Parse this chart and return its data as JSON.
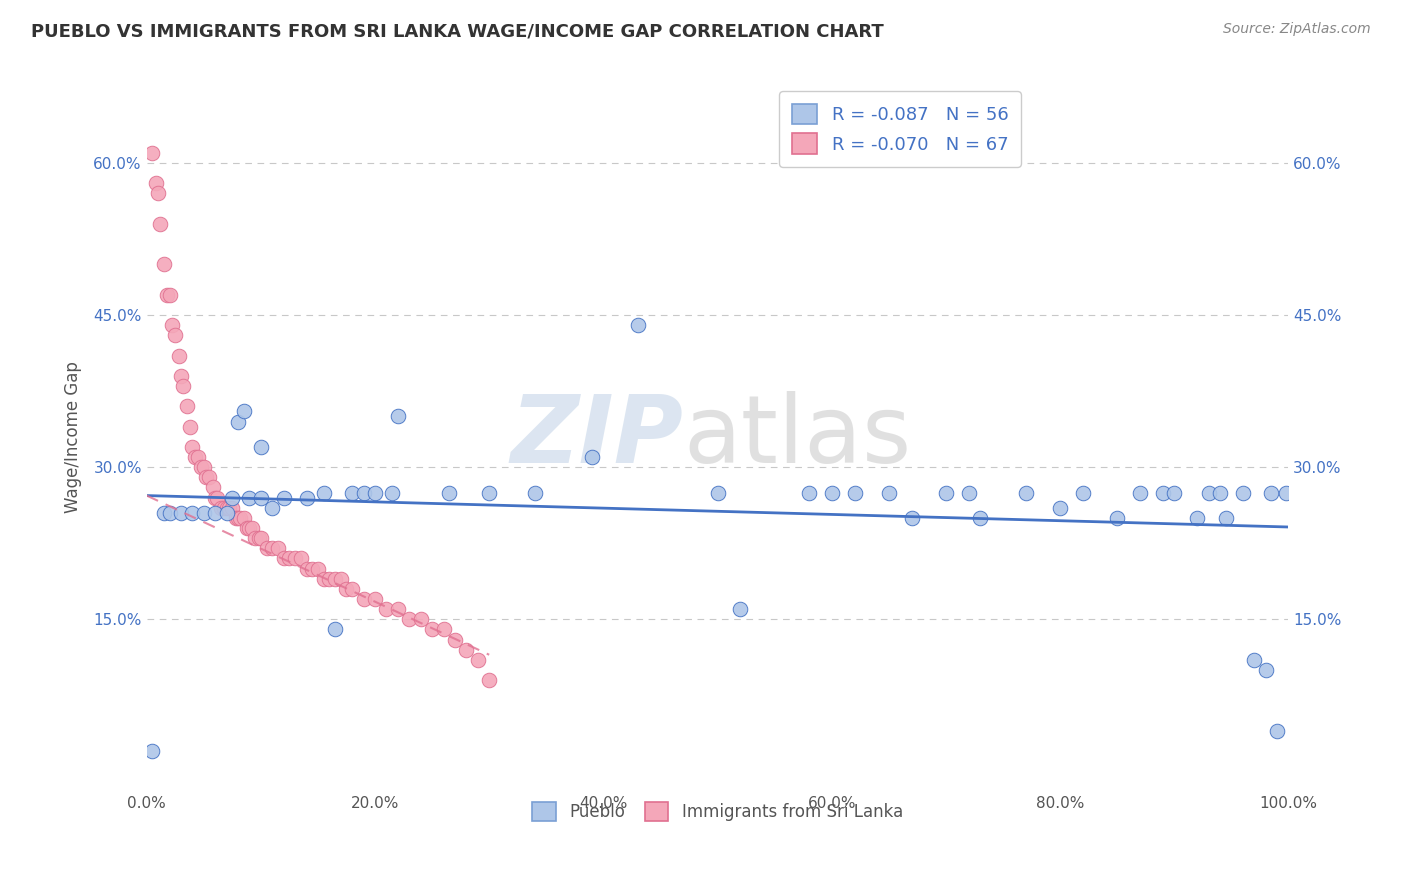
{
  "title": "PUEBLO VS IMMIGRANTS FROM SRI LANKA WAGE/INCOME GAP CORRELATION CHART",
  "source_text": "Source: ZipAtlas.com",
  "ylabel": "Wage/Income Gap",
  "xlabel": "",
  "xlim": [
    0.0,
    1.0
  ],
  "ylim": [
    -0.02,
    0.68
  ],
  "xticks": [
    0.0,
    0.2,
    0.4,
    0.6,
    0.8,
    1.0
  ],
  "xticklabels": [
    "0.0%",
    "20.0%",
    "40.0%",
    "60.0%",
    "80.0%",
    "100.0%"
  ],
  "yticks": [
    0.15,
    0.3,
    0.45,
    0.6
  ],
  "yticklabels": [
    "15.0%",
    "30.0%",
    "45.0%",
    "60.0%"
  ],
  "legend_r1": "R = -0.087",
  "legend_n1": "N = 56",
  "legend_r2": "R = -0.070",
  "legend_n2": "N = 67",
  "color_blue": "#aec6e8",
  "color_pink": "#f4a7b9",
  "line_blue": "#4472c4",
  "line_pink": "#e07090",
  "pueblo_x": [
    0.005,
    0.015,
    0.02,
    0.03,
    0.04,
    0.05,
    0.06,
    0.07,
    0.075,
    0.08,
    0.085,
    0.09,
    0.1,
    0.1,
    0.11,
    0.12,
    0.14,
    0.155,
    0.165,
    0.18,
    0.19,
    0.2,
    0.215,
    0.22,
    0.265,
    0.3,
    0.34,
    0.39,
    0.43,
    0.5,
    0.52,
    0.58,
    0.6,
    0.62,
    0.65,
    0.67,
    0.7,
    0.72,
    0.73,
    0.77,
    0.8,
    0.82,
    0.85,
    0.87,
    0.89,
    0.9,
    0.92,
    0.93,
    0.94,
    0.945,
    0.96,
    0.97,
    0.98,
    0.985,
    0.99,
    0.998
  ],
  "pueblo_y": [
    0.02,
    0.255,
    0.255,
    0.255,
    0.255,
    0.255,
    0.255,
    0.255,
    0.27,
    0.345,
    0.355,
    0.27,
    0.27,
    0.32,
    0.26,
    0.27,
    0.27,
    0.275,
    0.14,
    0.275,
    0.275,
    0.275,
    0.275,
    0.35,
    0.275,
    0.275,
    0.275,
    0.31,
    0.44,
    0.275,
    0.16,
    0.275,
    0.275,
    0.275,
    0.275,
    0.25,
    0.275,
    0.275,
    0.25,
    0.275,
    0.26,
    0.275,
    0.25,
    0.275,
    0.275,
    0.275,
    0.25,
    0.275,
    0.275,
    0.25,
    0.275,
    0.11,
    0.1,
    0.275,
    0.04,
    0.275
  ],
  "srilanka_x": [
    0.005,
    0.008,
    0.01,
    0.012,
    0.015,
    0.018,
    0.02,
    0.022,
    0.025,
    0.028,
    0.03,
    0.032,
    0.035,
    0.038,
    0.04,
    0.042,
    0.045,
    0.048,
    0.05,
    0.052,
    0.055,
    0.058,
    0.06,
    0.062,
    0.065,
    0.068,
    0.07,
    0.072,
    0.075,
    0.078,
    0.08,
    0.082,
    0.085,
    0.088,
    0.09,
    0.092,
    0.095,
    0.098,
    0.1,
    0.105,
    0.11,
    0.115,
    0.12,
    0.125,
    0.13,
    0.135,
    0.14,
    0.145,
    0.15,
    0.155,
    0.16,
    0.165,
    0.17,
    0.175,
    0.18,
    0.19,
    0.2,
    0.21,
    0.22,
    0.23,
    0.24,
    0.25,
    0.26,
    0.27,
    0.28,
    0.29,
    0.3
  ],
  "srilanka_y": [
    0.61,
    0.58,
    0.57,
    0.54,
    0.5,
    0.47,
    0.47,
    0.44,
    0.43,
    0.41,
    0.39,
    0.38,
    0.36,
    0.34,
    0.32,
    0.31,
    0.31,
    0.3,
    0.3,
    0.29,
    0.29,
    0.28,
    0.27,
    0.27,
    0.26,
    0.26,
    0.26,
    0.26,
    0.26,
    0.25,
    0.25,
    0.25,
    0.25,
    0.24,
    0.24,
    0.24,
    0.23,
    0.23,
    0.23,
    0.22,
    0.22,
    0.22,
    0.21,
    0.21,
    0.21,
    0.21,
    0.2,
    0.2,
    0.2,
    0.19,
    0.19,
    0.19,
    0.19,
    0.18,
    0.18,
    0.17,
    0.17,
    0.16,
    0.16,
    0.15,
    0.15,
    0.14,
    0.14,
    0.13,
    0.12,
    0.11,
    0.09
  ],
  "pueblo_trendline": [
    0.0,
    1.0,
    0.272,
    0.241
  ],
  "srilanka_trendline": [
    0.0,
    0.3,
    0.272,
    0.115
  ]
}
